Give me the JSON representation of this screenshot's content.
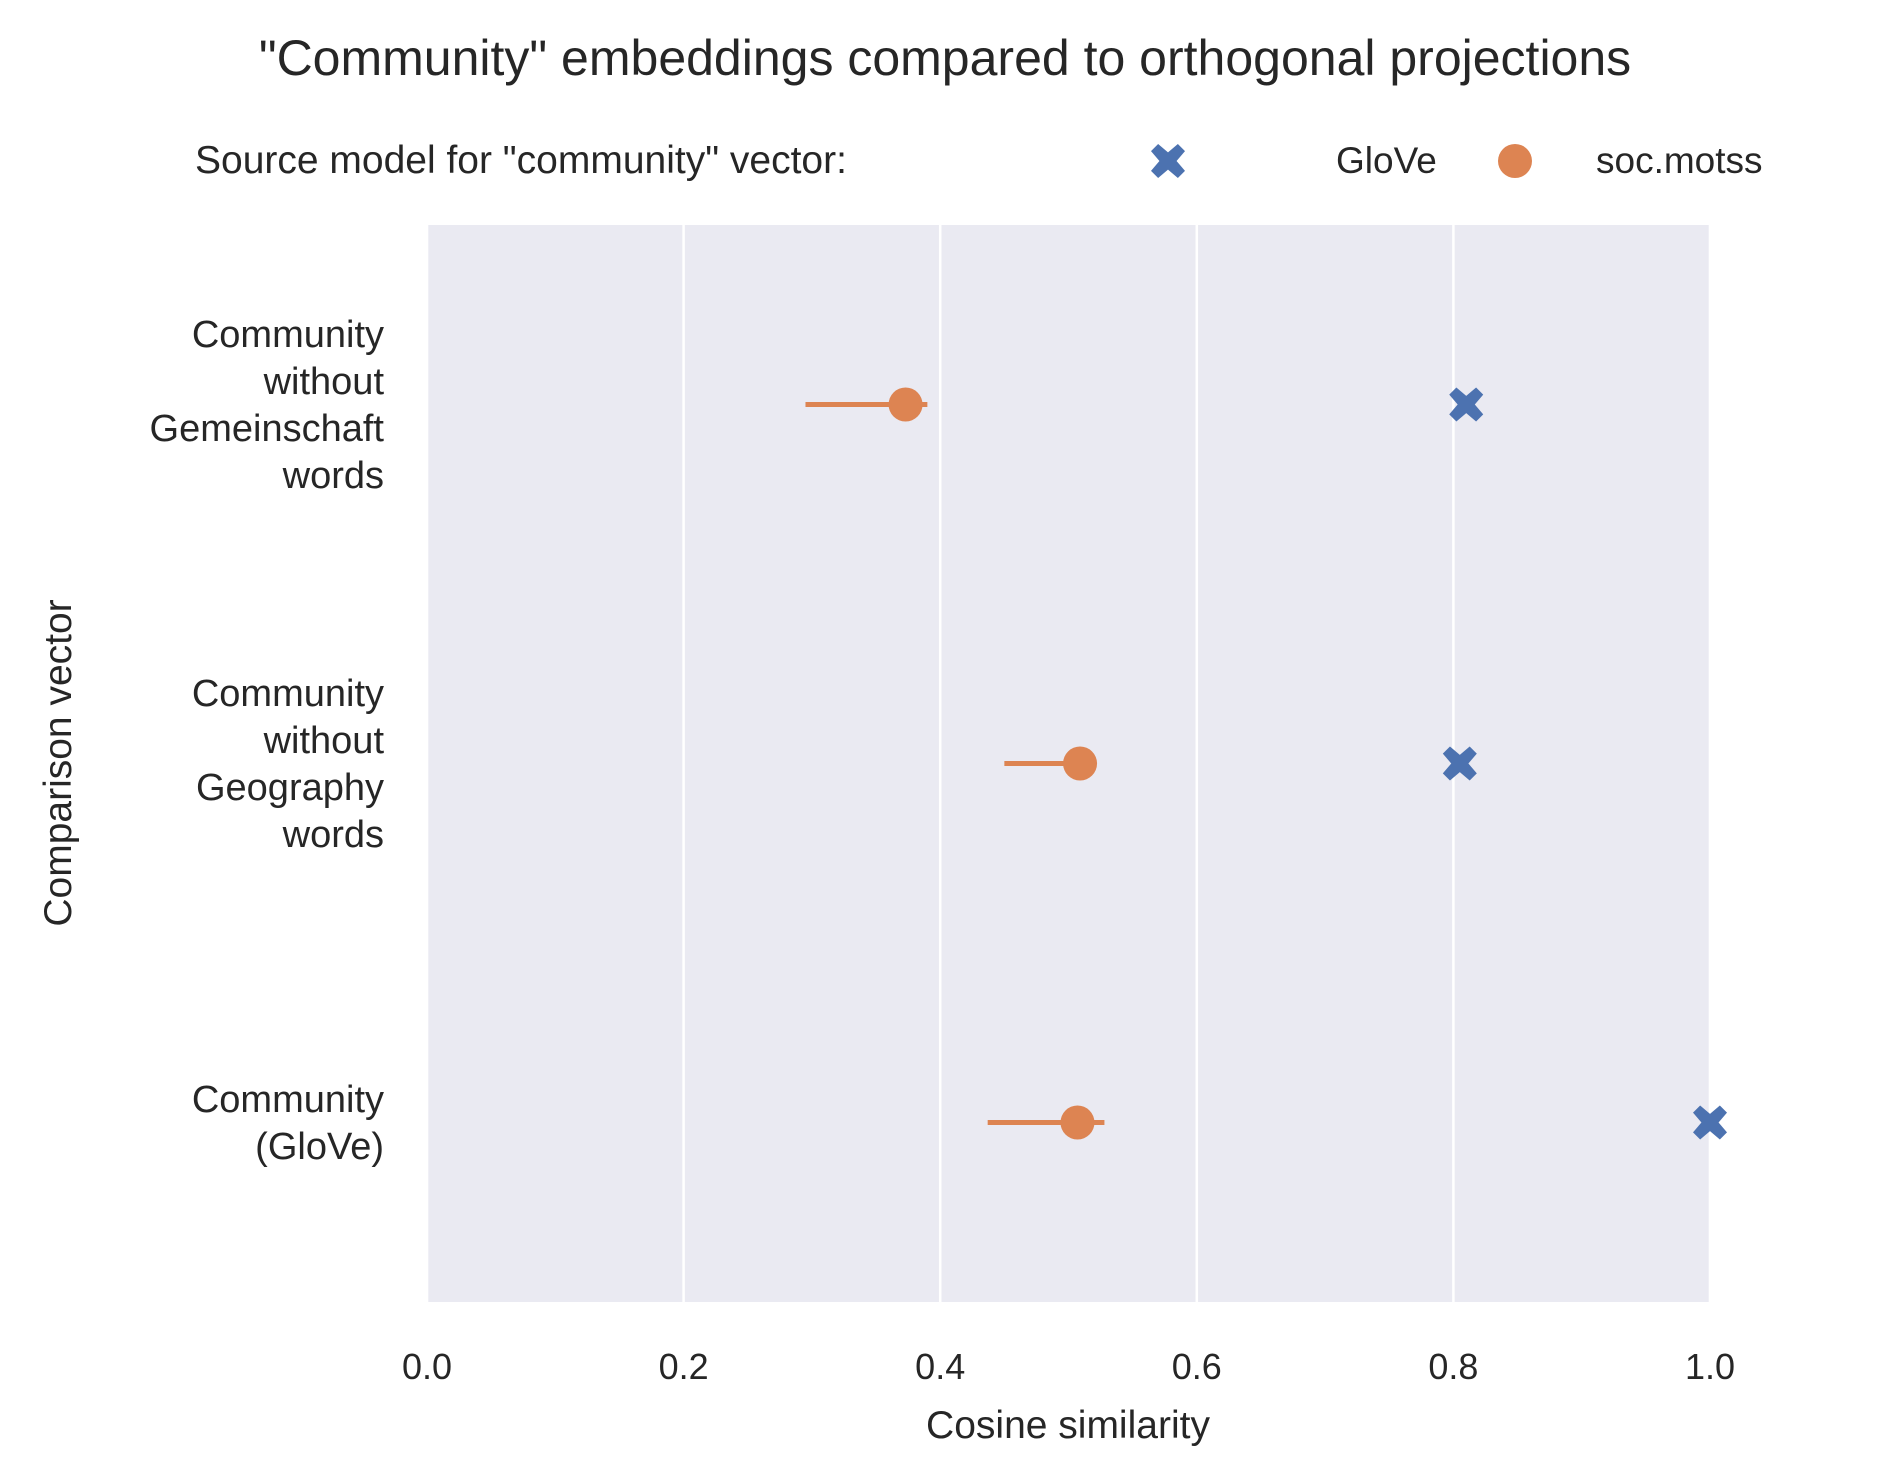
{
  "chart_data": {
    "type": "scatter",
    "title": "\"Community\" embeddings compared to orthogonal projections",
    "legend": {
      "title": "Source model for \"community\" vector:",
      "placement": "top",
      "entries": [
        {
          "name": "GloVe",
          "marker": "X",
          "color": "#4c72b0"
        },
        {
          "name": "soc.motss",
          "marker": "circle",
          "color": "#dd8452"
        }
      ]
    },
    "xlabel": "Cosine similarity",
    "ylabel": "Comparison vector",
    "xlim": [
      0.0,
      1.0
    ],
    "xticks": [
      "0.0",
      "0.2",
      "0.4",
      "0.6",
      "0.8",
      "1.0"
    ],
    "grid": true,
    "categories": [
      [
        "Community",
        "without",
        "Gemeinschaft",
        "words"
      ],
      [
        "Community",
        "without",
        "Geography",
        "words"
      ],
      [
        "Community",
        "(GloVe)"
      ]
    ],
    "series": [
      {
        "name": "GloVe",
        "values": [
          0.81,
          0.805,
          1.0
        ]
      },
      {
        "name": "soc.motss",
        "values": [
          0.373,
          0.509,
          0.507
        ],
        "error_low": [
          0.295,
          0.45,
          0.437
        ],
        "error_high": [
          0.39,
          0.509,
          0.528
        ]
      }
    ]
  }
}
